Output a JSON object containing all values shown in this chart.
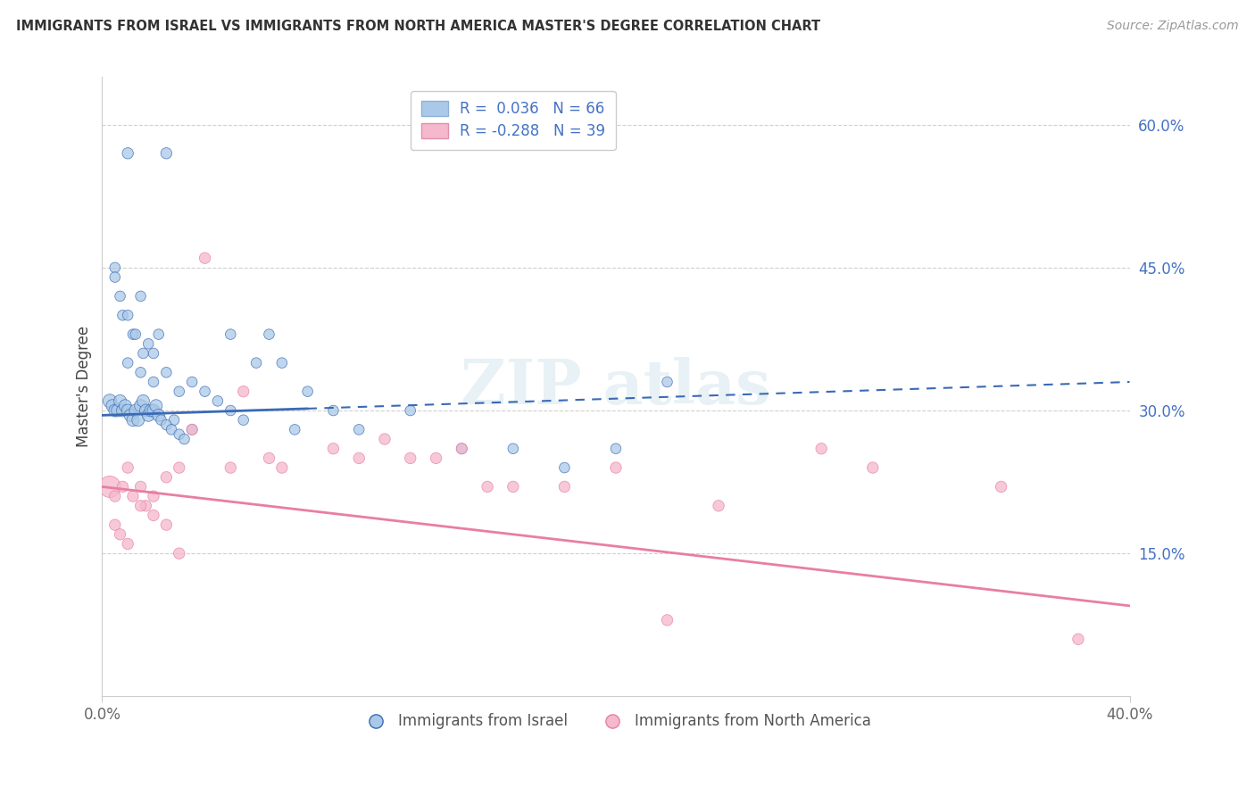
{
  "title": "IMMIGRANTS FROM ISRAEL VS IMMIGRANTS FROM NORTH AMERICA MASTER'S DEGREE CORRELATION CHART",
  "source": "Source: ZipAtlas.com",
  "ylabel": "Master's Degree",
  "xlim": [
    0.0,
    40.0
  ],
  "ylim": [
    0.0,
    65.0
  ],
  "yticks": [
    15.0,
    30.0,
    45.0,
    60.0
  ],
  "ytick_labels": [
    "15.0%",
    "30.0%",
    "45.0%",
    "60.0%"
  ],
  "blue_color": "#aac9e8",
  "pink_color": "#f5b8cc",
  "blue_line_color": "#3a6ab5",
  "pink_line_color": "#e87fa0",
  "blue_scatter_x": [
    1.0,
    2.5,
    0.5,
    1.5,
    0.8,
    1.2,
    1.8,
    2.0,
    2.2,
    1.0,
    1.5,
    2.0,
    0.5,
    0.7,
    1.0,
    1.3,
    1.6,
    2.5,
    3.0,
    2.0,
    2.8,
    3.5,
    0.3,
    0.4,
    0.5,
    0.6,
    0.7,
    0.8,
    0.9,
    1.0,
    1.1,
    1.2,
    1.3,
    1.4,
    1.5,
    1.6,
    1.7,
    1.8,
    1.9,
    2.0,
    2.1,
    2.2,
    2.3,
    2.5,
    2.7,
    3.0,
    3.2,
    3.5,
    4.0,
    4.5,
    5.0,
    5.5,
    6.0,
    7.0,
    7.5,
    8.0,
    9.0,
    10.0,
    12.0,
    14.0,
    16.0,
    18.0,
    20.0,
    22.0,
    5.0,
    6.5
  ],
  "blue_scatter_y": [
    57.0,
    57.0,
    45.0,
    42.0,
    40.0,
    38.0,
    37.0,
    36.0,
    38.0,
    35.0,
    34.0,
    33.0,
    44.0,
    42.0,
    40.0,
    38.0,
    36.0,
    34.0,
    32.0,
    30.0,
    29.0,
    28.0,
    31.0,
    30.5,
    30.0,
    30.0,
    31.0,
    30.0,
    30.5,
    30.0,
    29.5,
    29.0,
    30.0,
    29.0,
    30.5,
    31.0,
    30.0,
    29.5,
    30.0,
    30.0,
    30.5,
    29.5,
    29.0,
    28.5,
    28.0,
    27.5,
    27.0,
    33.0,
    32.0,
    31.0,
    30.0,
    29.0,
    35.0,
    35.0,
    28.0,
    32.0,
    30.0,
    28.0,
    30.0,
    26.0,
    26.0,
    24.0,
    26.0,
    33.0,
    38.0,
    38.0
  ],
  "blue_scatter_size": [
    80,
    80,
    70,
    70,
    70,
    70,
    70,
    70,
    70,
    70,
    70,
    70,
    70,
    70,
    70,
    70,
    70,
    70,
    70,
    70,
    70,
    70,
    120,
    100,
    100,
    100,
    100,
    100,
    100,
    100,
    100,
    100,
    100,
    100,
    100,
    100,
    100,
    100,
    100,
    100,
    100,
    100,
    70,
    70,
    70,
    70,
    70,
    70,
    70,
    70,
    70,
    70,
    70,
    70,
    70,
    70,
    70,
    70,
    70,
    70,
    70,
    70,
    70,
    70,
    70,
    70
  ],
  "pink_scatter_x": [
    0.3,
    0.5,
    0.8,
    1.0,
    1.2,
    1.5,
    1.7,
    2.0,
    2.5,
    3.0,
    3.5,
    4.0,
    5.0,
    5.5,
    6.5,
    7.0,
    9.0,
    10.0,
    11.0,
    12.0,
    13.0,
    14.0,
    15.0,
    16.0,
    18.0,
    20.0,
    22.0,
    24.0,
    28.0,
    30.0,
    35.0,
    38.0,
    0.5,
    0.7,
    1.0,
    1.5,
    2.0,
    2.5,
    3.0
  ],
  "pink_scatter_y": [
    22.0,
    21.0,
    22.0,
    24.0,
    21.0,
    22.0,
    20.0,
    19.0,
    23.0,
    24.0,
    28.0,
    46.0,
    24.0,
    32.0,
    25.0,
    24.0,
    26.0,
    25.0,
    27.0,
    25.0,
    25.0,
    26.0,
    22.0,
    22.0,
    22.0,
    24.0,
    8.0,
    20.0,
    26.0,
    24.0,
    22.0,
    6.0,
    18.0,
    17.0,
    16.0,
    20.0,
    21.0,
    18.0,
    15.0
  ],
  "pink_scatter_size": [
    300,
    80,
    80,
    80,
    80,
    80,
    80,
    80,
    80,
    80,
    80,
    80,
    80,
    80,
    80,
    80,
    80,
    80,
    80,
    80,
    80,
    80,
    80,
    80,
    80,
    80,
    80,
    80,
    80,
    80,
    80,
    80,
    80,
    80,
    80,
    80,
    80,
    80,
    80
  ],
  "blue_line_x0": 0.0,
  "blue_line_y0": 29.5,
  "blue_line_x1": 40.0,
  "blue_line_y1": 33.0,
  "blue_dashed_x0": 8.0,
  "blue_dashed_y0": 30.5,
  "blue_dashed_x1": 40.0,
  "blue_dashed_y1": 33.0,
  "pink_line_x0": 0.0,
  "pink_line_y0": 22.0,
  "pink_line_x1": 40.0,
  "pink_line_y1": 9.5
}
